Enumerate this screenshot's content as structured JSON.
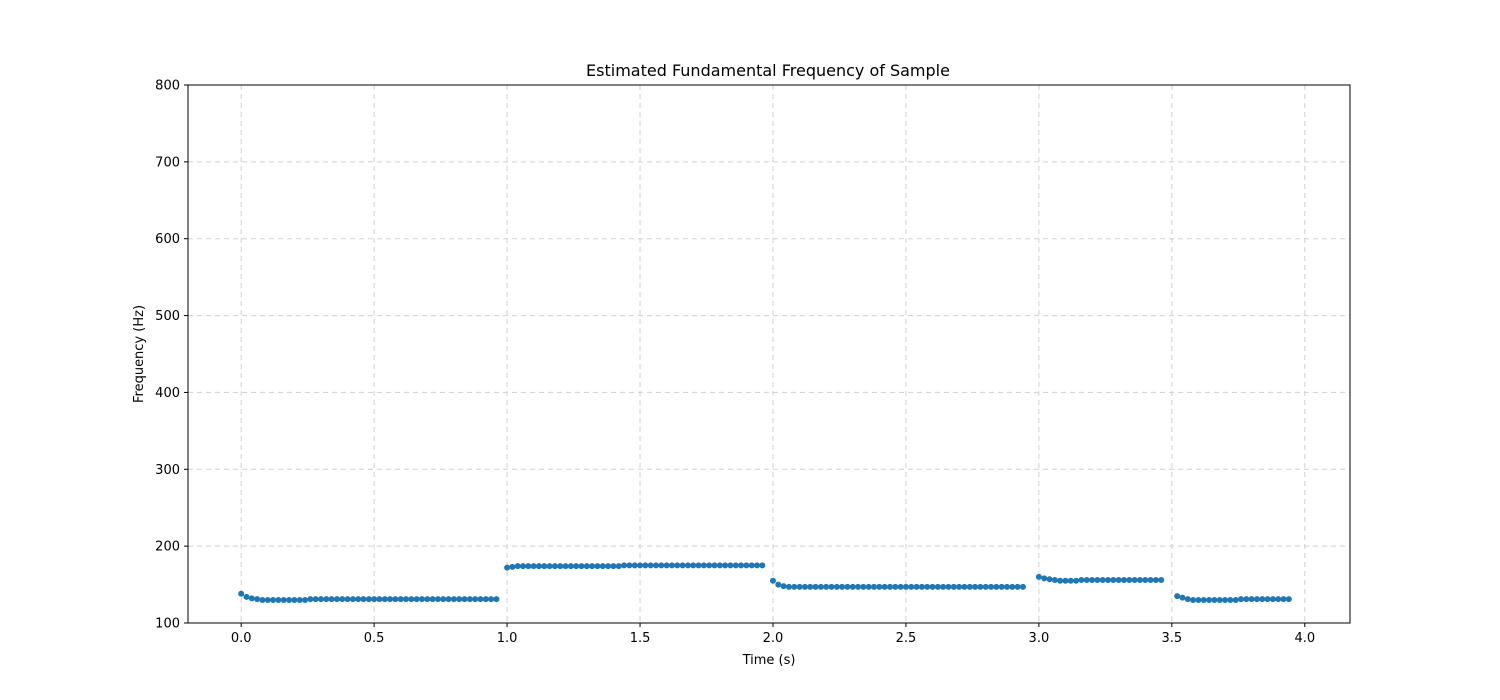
{
  "chart_data": {
    "type": "scatter",
    "title": "Estimated Fundamental Frequency of Sample",
    "xlabel": "Time (s)",
    "ylabel": "Frequency (Hz)",
    "xlim": [
      -0.2,
      4.17
    ],
    "ylim": [
      100,
      800
    ],
    "xticks": [
      0.0,
      0.5,
      1.0,
      1.5,
      2.0,
      2.5,
      3.0,
      3.5,
      4.0
    ],
    "xtick_labels": [
      "0.0",
      "0.5",
      "1.0",
      "1.5",
      "2.0",
      "2.5",
      "3.0",
      "3.5",
      "4.0"
    ],
    "yticks": [
      100,
      200,
      300,
      400,
      500,
      600,
      700,
      800
    ],
    "ytick_labels": [
      "100",
      "200",
      "300",
      "400",
      "500",
      "600",
      "700",
      "800"
    ],
    "grid": true,
    "color": "#1f77b4",
    "segments": [
      {
        "x": [
          0.0,
          0.02,
          0.04,
          0.06,
          0.08,
          0.1,
          0.12,
          0.14,
          0.16,
          0.18,
          0.2,
          0.22,
          0.24,
          0.26,
          0.28,
          0.3,
          0.32,
          0.34,
          0.36,
          0.38,
          0.4,
          0.42,
          0.44,
          0.46,
          0.48,
          0.5,
          0.52,
          0.54,
          0.56,
          0.58,
          0.6,
          0.62,
          0.64,
          0.66,
          0.68,
          0.7,
          0.72,
          0.74,
          0.76,
          0.78,
          0.8,
          0.82,
          0.84,
          0.86,
          0.88,
          0.9,
          0.92,
          0.94,
          0.96
        ],
        "y": [
          138,
          134,
          132,
          131,
          130,
          130,
          130,
          130,
          130,
          130,
          130,
          130,
          130,
          131,
          131,
          131,
          131,
          131,
          131,
          131,
          131,
          131,
          131,
          131,
          131,
          131,
          131,
          131,
          131,
          131,
          131,
          131,
          131,
          131,
          131,
          131,
          131,
          131,
          131,
          131,
          131,
          131,
          131,
          131,
          131,
          131,
          131,
          131,
          131
        ]
      },
      {
        "x": [
          1.0,
          1.02,
          1.04,
          1.06,
          1.08,
          1.1,
          1.12,
          1.14,
          1.16,
          1.18,
          1.2,
          1.22,
          1.24,
          1.26,
          1.28,
          1.3,
          1.32,
          1.34,
          1.36,
          1.38,
          1.4,
          1.42,
          1.44,
          1.46,
          1.48,
          1.5,
          1.52,
          1.54,
          1.56,
          1.58,
          1.6,
          1.62,
          1.64,
          1.66,
          1.68,
          1.7,
          1.72,
          1.74,
          1.76,
          1.78,
          1.8,
          1.82,
          1.84,
          1.86,
          1.88,
          1.9,
          1.92,
          1.94,
          1.96
        ],
        "y": [
          172,
          173,
          174,
          174,
          174,
          174,
          174,
          174,
          174,
          174,
          174,
          174,
          174,
          174,
          174,
          174,
          174,
          174,
          174,
          174,
          174,
          174,
          175,
          175,
          175,
          175,
          175,
          175,
          175,
          175,
          175,
          175,
          175,
          175,
          175,
          175,
          175,
          175,
          175,
          175,
          175,
          175,
          175,
          175,
          175,
          175,
          175,
          175,
          175
        ]
      },
      {
        "x": [
          2.0,
          2.02,
          2.04,
          2.06,
          2.08,
          2.1,
          2.12,
          2.14,
          2.16,
          2.18,
          2.2,
          2.22,
          2.24,
          2.26,
          2.28,
          2.3,
          2.32,
          2.34,
          2.36,
          2.38,
          2.4,
          2.42,
          2.44,
          2.46,
          2.48,
          2.5,
          2.52,
          2.54,
          2.56,
          2.58,
          2.6,
          2.62,
          2.64,
          2.66,
          2.68,
          2.7,
          2.72,
          2.74,
          2.76,
          2.78,
          2.8,
          2.82,
          2.84,
          2.86,
          2.88,
          2.9,
          2.92,
          2.94
        ],
        "y": [
          155,
          150,
          148,
          147,
          147,
          147,
          147,
          147,
          147,
          147,
          147,
          147,
          147,
          147,
          147,
          147,
          147,
          147,
          147,
          147,
          147,
          147,
          147,
          147,
          147,
          147,
          147,
          147,
          147,
          147,
          147,
          147,
          147,
          147,
          147,
          147,
          147,
          147,
          147,
          147,
          147,
          147,
          147,
          147,
          147,
          147,
          147,
          147
        ]
      },
      {
        "x": [
          3.0,
          3.02,
          3.04,
          3.06,
          3.08,
          3.1,
          3.12,
          3.14,
          3.16,
          3.18,
          3.2,
          3.22,
          3.24,
          3.26,
          3.28,
          3.3,
          3.32,
          3.34,
          3.36,
          3.38,
          3.4,
          3.42,
          3.44,
          3.46
        ],
        "y": [
          160,
          158,
          157,
          156,
          155,
          155,
          155,
          155,
          156,
          156,
          156,
          156,
          156,
          156,
          156,
          156,
          156,
          156,
          156,
          156,
          156,
          156,
          156,
          156
        ]
      },
      {
        "x": [
          3.52,
          3.54,
          3.56,
          3.58,
          3.6,
          3.62,
          3.64,
          3.66,
          3.68,
          3.7,
          3.72,
          3.74,
          3.76,
          3.78,
          3.8,
          3.82,
          3.84,
          3.86,
          3.88,
          3.9,
          3.92,
          3.94
        ],
        "y": [
          135,
          133,
          131,
          130,
          130,
          130,
          130,
          130,
          130,
          130,
          130,
          130,
          131,
          131,
          131,
          131,
          131,
          131,
          131,
          131,
          131,
          131
        ]
      }
    ]
  }
}
